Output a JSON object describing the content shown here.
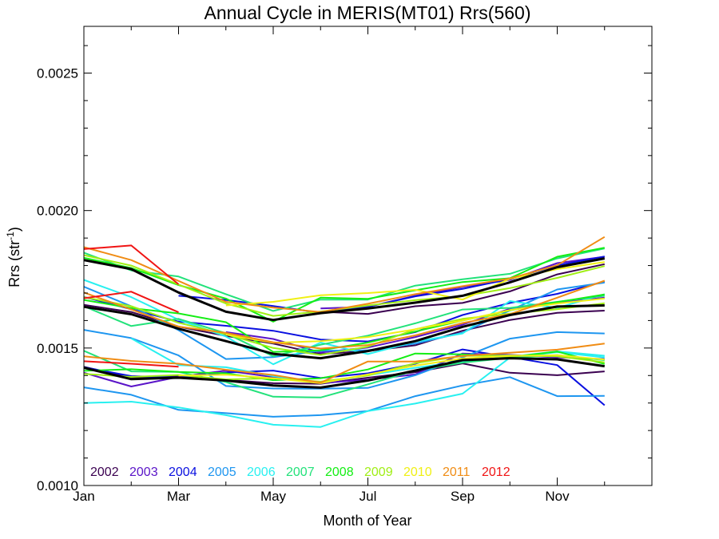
{
  "chart_data": {
    "type": "line",
    "title": "Annual Cycle in MERIS(MT01) Rrs(560)",
    "xlabel": "Month of Year",
    "ylabel": "Rrs (str",
    "ylabel_sup": "-1",
    "ylabel_close": ")",
    "xlim": [
      1,
      13
    ],
    "ylim": [
      0.001,
      0.00267
    ],
    "x_ticks": [
      {
        "value": 1,
        "label": "Jan"
      },
      {
        "value": 3,
        "label": "Mar"
      },
      {
        "value": 5,
        "label": "May"
      },
      {
        "value": 7,
        "label": "Jul"
      },
      {
        "value": 9,
        "label": "Sep"
      },
      {
        "value": 11,
        "label": "Nov"
      }
    ],
    "x_minor_ticks": [
      2,
      4,
      6,
      8,
      10,
      12
    ],
    "y_ticks": [
      {
        "value": 0.001,
        "label": "0.0010"
      },
      {
        "value": 0.0015,
        "label": "0.0015"
      },
      {
        "value": 0.002,
        "label": "0.0020"
      },
      {
        "value": 0.0025,
        "label": "0.0025"
      }
    ],
    "y_minor_step": 0.0001,
    "grid": false,
    "legend_position": "bottom-left",
    "legend": [
      {
        "name": "2002",
        "color": "#3a0050"
      },
      {
        "name": "2003",
        "color": "#5a14c8"
      },
      {
        "name": "2004",
        "color": "#0a10e0"
      },
      {
        "name": "2005",
        "color": "#1e96f0"
      },
      {
        "name": "2006",
        "color": "#28f0f0"
      },
      {
        "name": "2007",
        "color": "#22e27a"
      },
      {
        "name": "2008",
        "color": "#14ee14"
      },
      {
        "name": "2009",
        "color": "#a0ee14"
      },
      {
        "name": "2010",
        "color": "#f0f014"
      },
      {
        "name": "2011",
        "color": "#f08c14"
      },
      {
        "name": "2012",
        "color": "#f01414"
      }
    ],
    "series": [
      {
        "color": "#3a0050",
        "x": [
          1,
          2,
          3,
          4,
          5,
          6,
          7,
          8,
          9,
          10,
          11,
          12
        ],
        "values": [
          0.001657,
          0.001631,
          0.001578,
          0.001544,
          0.001516,
          0.001478,
          0.001489,
          0.00151,
          0.001563,
          0.001602,
          0.001628,
          0.001636
        ]
      },
      {
        "color": "#3a0050",
        "x": [
          1,
          2,
          3,
          4,
          5,
          6,
          7,
          8,
          9,
          10,
          11,
          12
        ],
        "values": [
          0.001432,
          0.001392,
          0.001399,
          0.001384,
          0.001372,
          0.00137,
          0.001392,
          0.001412,
          0.001444,
          0.00141,
          0.001401,
          0.001415
        ]
      },
      {
        "color": "#3a0050",
        "x": [
          6,
          7,
          8,
          9,
          10,
          11,
          12
        ],
        "values": [
          0.001632,
          0.001624,
          0.001652,
          0.001664,
          0.001706,
          0.001768,
          0.001805
        ]
      },
      {
        "color": "#5a14c8",
        "x": [
          1,
          2,
          3,
          4,
          5,
          6,
          7,
          8,
          9,
          10,
          11,
          12
        ],
        "values": [
          0.00141,
          0.00136,
          0.001395,
          0.001418,
          0.001394,
          0.001372,
          0.001385,
          0.001404,
          0.00148,
          0.001475,
          0.001466,
          0.00146
        ]
      },
      {
        "color": "#5a14c8",
        "x": [
          4,
          5,
          6,
          7,
          8,
          9,
          10,
          11,
          12
        ],
        "values": [
          0.001558,
          0.001533,
          0.001484,
          0.001502,
          0.00154,
          0.001585,
          0.001643,
          0.001664,
          0.001683
        ]
      },
      {
        "color": "#5a14c8",
        "x": [
          6,
          7,
          8,
          9,
          10,
          11,
          12
        ],
        "values": [
          0.001644,
          0.00165,
          0.00169,
          0.001722,
          0.001748,
          0.001809,
          0.001832
        ]
      },
      {
        "color": "#0a10e0",
        "x": [
          1,
          2,
          3,
          4,
          5,
          6,
          7,
          8,
          9,
          10,
          11,
          12
        ],
        "values": [
          0.00143,
          0.001398,
          0.001393,
          0.001411,
          0.001418,
          0.001391,
          0.001408,
          0.001443,
          0.001495,
          0.001467,
          0.001438,
          0.001292
        ]
      },
      {
        "color": "#0a10e0",
        "x": [
          1,
          2,
          3,
          4,
          5,
          6,
          7,
          8,
          9,
          10,
          11,
          12
        ],
        "values": [
          0.001686,
          0.001641,
          0.001596,
          0.001581,
          0.001563,
          0.001531,
          0.001524,
          0.001558,
          0.00162,
          0.001664,
          0.001697,
          0.001742
        ]
      },
      {
        "color": "#0a10e0",
        "x": [
          3,
          4,
          5,
          6,
          7,
          8,
          9,
          10,
          11,
          12
        ],
        "values": [
          0.00169,
          0.001675,
          0.001653,
          0.001628,
          0.00165,
          0.001688,
          0.001715,
          0.001751,
          0.001801,
          0.001833
        ]
      },
      {
        "color": "#1e96f0",
        "x": [
          1,
          2,
          3,
          4,
          5,
          6,
          7,
          8,
          9,
          10,
          11,
          12
        ],
        "values": [
          0.001357,
          0.00133,
          0.001275,
          0.001263,
          0.00125,
          0.001256,
          0.001271,
          0.001325,
          0.001364,
          0.001394,
          0.001325,
          0.001326
        ]
      },
      {
        "color": "#1e96f0",
        "x": [
          1,
          2,
          3,
          4,
          5,
          6,
          7,
          8,
          9,
          10,
          11,
          12
        ],
        "values": [
          0.001566,
          0.001536,
          0.001473,
          0.001362,
          0.001353,
          0.001352,
          0.001355,
          0.001401,
          0.001466,
          0.001534,
          0.001558,
          0.001553
        ]
      },
      {
        "color": "#1e96f0",
        "x": [
          1,
          2,
          3,
          4,
          5,
          6,
          7,
          8,
          9,
          10,
          11,
          12
        ],
        "values": [
          0.001723,
          0.001652,
          0.001565,
          0.00146,
          0.001467,
          0.00149,
          0.001492,
          0.001516,
          0.001556,
          0.001637,
          0.001713,
          0.001738
        ]
      },
      {
        "color": "#28f0f0",
        "x": [
          1,
          2,
          3,
          4,
          5,
          6,
          7,
          8,
          9,
          10,
          11,
          12
        ],
        "values": [
          0.0013,
          0.001305,
          0.001284,
          0.001256,
          0.001221,
          0.001213,
          0.001271,
          0.001298,
          0.001334,
          0.001465,
          0.001485,
          0.001466
        ]
      },
      {
        "color": "#28f0f0",
        "x": [
          1,
          2,
          3,
          4,
          5,
          6,
          7,
          8,
          9,
          10,
          11,
          12
        ],
        "values": [
          0.001748,
          0.001685,
          0.001603,
          0.001542,
          0.001441,
          0.00152,
          0.001478,
          0.001523,
          0.001553,
          0.001671,
          0.001646,
          0.001696
        ]
      },
      {
        "color": "#28f0f0",
        "x": [
          2,
          3,
          4,
          5,
          6,
          7,
          8,
          9,
          10,
          11,
          12
        ],
        "values": [
          0.001535,
          0.001438,
          0.00143,
          0.001398,
          0.001374,
          0.001401,
          0.001428,
          0.001452,
          0.001468,
          0.001488,
          0.001472
        ]
      },
      {
        "color": "#22e27a",
        "x": [
          1,
          2,
          3,
          4,
          5,
          6,
          7,
          8,
          9,
          10,
          11,
          12
        ],
        "values": [
          0.00149,
          0.001415,
          0.001413,
          0.001376,
          0.001323,
          0.00132,
          0.001368,
          0.001418,
          0.001447,
          0.001464,
          0.001474,
          0.001456
        ]
      },
      {
        "color": "#22e27a",
        "x": [
          1,
          2,
          3,
          4,
          5,
          6,
          7,
          8,
          9,
          10,
          11,
          12
        ],
        "values": [
          0.001652,
          0.00158,
          0.001606,
          0.001554,
          0.00147,
          0.001512,
          0.001545,
          0.00159,
          0.00164,
          0.001646,
          0.001668,
          0.00169
        ]
      },
      {
        "color": "#22e27a",
        "x": [
          1,
          2,
          3,
          4,
          5,
          6,
          7,
          8,
          9,
          10,
          11,
          12
        ],
        "values": [
          0.001847,
          0.001782,
          0.00176,
          0.001696,
          0.001635,
          0.001676,
          0.001676,
          0.001727,
          0.00175,
          0.00177,
          0.001826,
          0.001862
        ]
      },
      {
        "color": "#14ee14",
        "x": [
          1,
          2,
          3,
          4,
          5,
          6,
          7,
          8,
          9,
          10,
          11,
          12
        ],
        "values": [
          0.001417,
          0.001423,
          0.001413,
          0.001408,
          0.001383,
          0.00139,
          0.001422,
          0.00148,
          0.001477,
          0.001467,
          0.001487,
          0.001442
        ]
      },
      {
        "color": "#14ee14",
        "x": [
          1,
          2,
          3,
          4,
          5,
          6,
          7,
          8,
          9,
          10,
          11,
          12
        ],
        "values": [
          0.001675,
          0.001645,
          0.001626,
          0.001594,
          0.001486,
          0.001492,
          0.00152,
          0.00156,
          0.0016,
          0.001637,
          0.001667,
          0.001695
        ]
      },
      {
        "color": "#14ee14",
        "x": [
          1,
          2,
          3,
          4,
          5,
          6,
          7,
          8,
          9,
          10,
          11,
          12
        ],
        "values": [
          0.001828,
          0.001791,
          0.001729,
          0.00168,
          0.001596,
          0.001683,
          0.001679,
          0.00171,
          0.00174,
          0.001754,
          0.001832,
          0.001865
        ]
      },
      {
        "color": "#a0ee14",
        "x": [
          1,
          2,
          3,
          4,
          5,
          6,
          7,
          8,
          9,
          10,
          11,
          12
        ],
        "values": [
          0.001406,
          0.001395,
          0.001402,
          0.001386,
          0.00139,
          0.001378,
          0.0014,
          0.001445,
          0.001471,
          0.001473,
          0.00147,
          0.001448
        ]
      },
      {
        "color": "#a0ee14",
        "x": [
          1,
          2,
          3,
          4,
          5,
          6,
          7,
          8,
          9,
          10,
          11,
          12
        ],
        "values": [
          0.001685,
          0.001652,
          0.001592,
          0.00155,
          0.0015,
          0.001475,
          0.001505,
          0.001568,
          0.001606,
          0.001625,
          0.001641,
          0.001663
        ]
      },
      {
        "color": "#a0ee14",
        "x": [
          1,
          2,
          3,
          4,
          5,
          6,
          7,
          8,
          9,
          10,
          11,
          12
        ],
        "values": [
          0.001838,
          0.0018,
          0.001731,
          0.001662,
          0.001617,
          0.001633,
          0.001655,
          0.001674,
          0.001689,
          0.001718,
          0.001755,
          0.001798
        ]
      },
      {
        "color": "#f0f014",
        "x": [
          4,
          5,
          6,
          7,
          8,
          9,
          10,
          11,
          12
        ],
        "values": [
          0.001655,
          0.001668,
          0.001692,
          0.0017,
          0.001712,
          0.001676,
          0.001752,
          0.001787,
          0.001813
        ]
      },
      {
        "color": "#f0f014",
        "x": [
          4,
          5,
          6,
          7,
          8,
          9,
          10,
          11,
          12
        ],
        "values": [
          0.001549,
          0.001519,
          0.001525,
          0.00154,
          0.001568,
          0.0016,
          0.001638,
          0.001662,
          0.00168
        ]
      },
      {
        "color": "#f0f014",
        "x": [
          3,
          4,
          5,
          6,
          7,
          8,
          9,
          10,
          11,
          12
        ],
        "values": [
          0.0014,
          0.001403,
          0.00139,
          0.001372,
          0.001404,
          0.001436,
          0.001462,
          0.001471,
          0.001474,
          0.001458
        ]
      },
      {
        "color": "#f08c14",
        "x": [
          1,
          2,
          3,
          4,
          5,
          6,
          7,
          8,
          9,
          10,
          11,
          12
        ],
        "values": [
          0.001867,
          0.00182,
          0.001744,
          0.001668,
          0.001647,
          0.001631,
          0.001661,
          0.001696,
          0.001725,
          0.001753,
          0.001801,
          0.001904
        ]
      },
      {
        "color": "#f08c14",
        "x": [
          1,
          2,
          3,
          4,
          5,
          6,
          7,
          8,
          9,
          10,
          11,
          12
        ],
        "values": [
          0.001702,
          0.00164,
          0.001578,
          0.001555,
          0.001521,
          0.001498,
          0.001511,
          0.001546,
          0.001591,
          0.001623,
          0.001683,
          0.001745
        ]
      },
      {
        "color": "#f08c14",
        "x": [
          1,
          2,
          3,
          4,
          5,
          6,
          7,
          8,
          9,
          10,
          11,
          12
        ],
        "values": [
          0.00147,
          0.001453,
          0.001443,
          0.001421,
          0.001402,
          0.001374,
          0.001451,
          0.001451,
          0.001471,
          0.001483,
          0.001494,
          0.001516
        ]
      },
      {
        "color": "#f01414",
        "x": [
          1,
          2,
          3
        ],
        "values": [
          0.00186,
          0.001873,
          0.001732
        ]
      },
      {
        "color": "#f01414",
        "x": [
          1,
          2,
          3
        ],
        "values": [
          0.001681,
          0.001705,
          0.00163
        ]
      },
      {
        "color": "#f01414",
        "x": [
          1,
          2,
          3
        ],
        "values": [
          0.001452,
          0.001443,
          0.001432
        ]
      },
      {
        "color": "#000000",
        "bold": true,
        "x": [
          1,
          2,
          3,
          4,
          5,
          6,
          7,
          8,
          9,
          10,
          11,
          12
        ],
        "values": [
          0.00182,
          0.001787,
          0.001702,
          0.001632,
          0.001602,
          0.001627,
          0.001644,
          0.001665,
          0.00169,
          0.001739,
          0.001794,
          0.001826
        ]
      },
      {
        "color": "#000000",
        "bold": true,
        "x": [
          1,
          2,
          3,
          4,
          5,
          6,
          7,
          8,
          9,
          10,
          11,
          12
        ],
        "values": [
          0.00165,
          0.001623,
          0.00157,
          0.001525,
          0.001479,
          0.001463,
          0.001489,
          0.001525,
          0.001577,
          0.00162,
          0.001651,
          0.001655
        ]
      },
      {
        "color": "#000000",
        "bold": true,
        "x": [
          1,
          2,
          3,
          4,
          5,
          6,
          7,
          8,
          9,
          10,
          11,
          12
        ],
        "values": [
          0.001428,
          0.001387,
          0.001392,
          0.001382,
          0.001364,
          0.001356,
          0.001382,
          0.001418,
          0.001456,
          0.001463,
          0.001459,
          0.001434
        ]
      }
    ]
  }
}
